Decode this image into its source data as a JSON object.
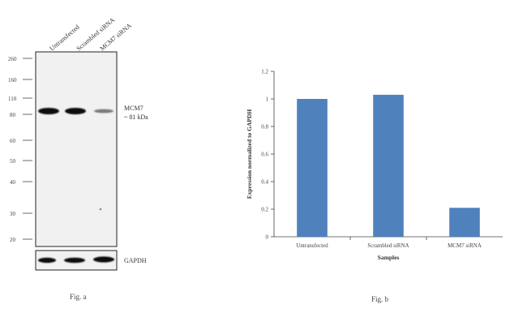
{
  "western_blot": {
    "lane_labels": [
      "Untransfected",
      "Scrambled siRNA",
      "MCM7 siRNA"
    ],
    "mw_markers": [
      "260",
      "160",
      "110",
      "80",
      "60",
      "50",
      "40",
      "30",
      "20"
    ],
    "band_label_line1": "MCM7",
    "band_label_line2": "~ 81 kDa",
    "loading_control_label": "GAPDH",
    "caption": "Fig. a"
  },
  "chart_data": {
    "type": "bar",
    "categories": [
      "Untransfected",
      "Scrambled siRNA",
      "MCM7 siRNA"
    ],
    "values": [
      1.0,
      1.03,
      0.21
    ],
    "title": "",
    "xlabel": "Samples",
    "ylabel": "Expression normalized to GAPDH",
    "ylim": [
      0,
      1.2
    ],
    "yticks": [
      "0",
      "0.2",
      "0.4",
      "0.6",
      "0.8",
      "1",
      "1.2"
    ],
    "bar_color": "#4f81bd",
    "grid": false,
    "legend": "none",
    "caption": "Fig. b"
  }
}
